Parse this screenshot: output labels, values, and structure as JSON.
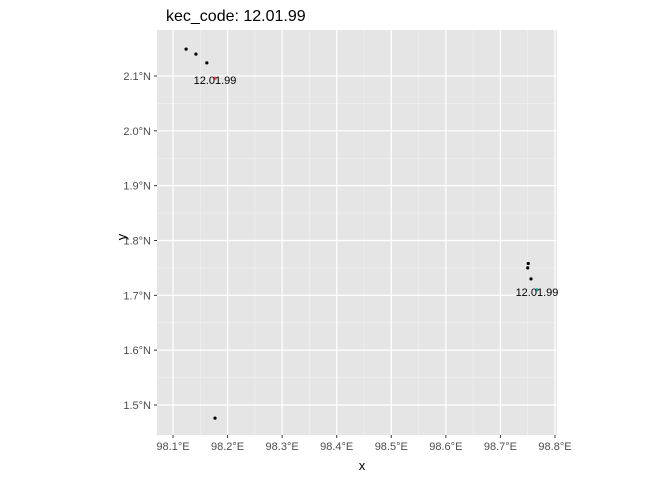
{
  "chart_data": {
    "type": "scatter",
    "title": "kec_code: 12.01.99",
    "xlabel": "x",
    "ylabel": "y",
    "xlim": [
      98.09,
      98.8
    ],
    "ylim": [
      1.45,
      2.19
    ],
    "xticks": [
      98.1,
      98.2,
      98.3,
      98.4,
      98.5,
      98.6,
      98.7,
      98.8
    ],
    "xtick_labels": [
      "98.1°E",
      "98.2°E",
      "98.3°E",
      "98.4°E",
      "98.5°E",
      "98.6°E",
      "98.7°E",
      "98.8°E"
    ],
    "yticks": [
      1.5,
      1.6,
      1.7,
      1.8,
      1.9,
      2.0,
      2.1
    ],
    "ytick_labels": [
      "1.5°N",
      "1.6°N",
      "1.7°N",
      "1.8°N",
      "1.9°N",
      "2.0°N",
      "2.1°N"
    ],
    "grid": true,
    "panel_background": "#e5e5e5",
    "points": [
      {
        "x": 98.124,
        "y": 2.149,
        "color": "#000000"
      },
      {
        "x": 98.142,
        "y": 2.14,
        "color": "#000000"
      },
      {
        "x": 98.162,
        "y": 2.124,
        "color": "#000000"
      },
      {
        "x": 98.177,
        "y": 2.096,
        "color": "#e8423f"
      },
      {
        "x": 98.751,
        "y": 1.758,
        "color": "#000000"
      },
      {
        "x": 98.75,
        "y": 1.75,
        "color": "#000000"
      },
      {
        "x": 98.756,
        "y": 1.73,
        "color": "#000000"
      },
      {
        "x": 98.767,
        "y": 1.71,
        "color": "#1aa39a"
      },
      {
        "x": 98.177,
        "y": 1.476,
        "color": "#000000"
      }
    ],
    "annotations": [
      {
        "x": 98.177,
        "y": 2.096,
        "text": "12.01.99"
      },
      {
        "x": 98.767,
        "y": 1.71,
        "text": "12.01.99"
      }
    ]
  }
}
